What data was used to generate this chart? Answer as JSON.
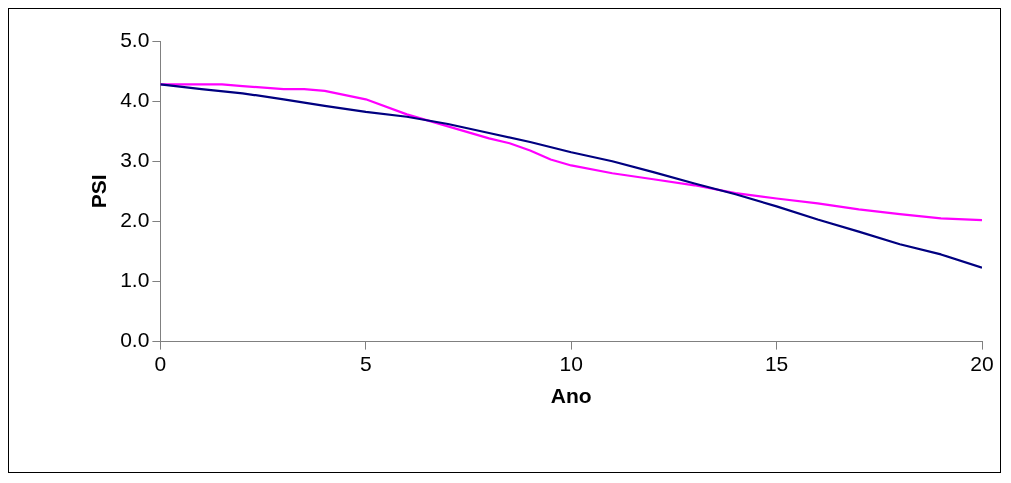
{
  "chart_data": {
    "type": "line",
    "xlabel": "Ano",
    "ylabel": "PSI",
    "xlim": [
      0,
      20
    ],
    "xticks": [
      0,
      5,
      10,
      15,
      20
    ],
    "ylim": [
      0,
      5
    ],
    "yticks": [
      {
        "value": 0,
        "label": "0.0"
      },
      {
        "value": 1,
        "label": "1.0"
      },
      {
        "value": 2,
        "label": "2.0"
      },
      {
        "value": 3,
        "label": "3.0"
      },
      {
        "value": 4,
        "label": "4.0"
      },
      {
        "value": 5,
        "label": "5.0"
      }
    ],
    "grid": false,
    "legend": false,
    "marker": "none",
    "line_style": "solid",
    "series": [
      {
        "color": "#000080",
        "x": [
          0,
          1,
          2,
          3,
          4,
          5,
          6,
          7,
          8,
          9,
          10,
          11,
          12,
          13,
          14,
          15,
          16,
          17,
          18,
          19,
          20
        ],
        "values": [
          4.28,
          4.2,
          4.13,
          4.03,
          3.92,
          3.82,
          3.74,
          3.62,
          3.47,
          3.32,
          3.15,
          3.0,
          2.82,
          2.63,
          2.45,
          2.25,
          2.03,
          1.83,
          1.62,
          1.45,
          1.23
        ]
      },
      {
        "color": "#ff00ff",
        "x": [
          0,
          1.5,
          2,
          3,
          3.5,
          4,
          5,
          6,
          7,
          8,
          8.5,
          9,
          9.5,
          10,
          11,
          12,
          13,
          14,
          15,
          16,
          17,
          18,
          19,
          20
        ],
        "values": [
          4.28,
          4.28,
          4.25,
          4.2,
          4.2,
          4.17,
          4.03,
          3.78,
          3.58,
          3.38,
          3.3,
          3.18,
          3.03,
          2.93,
          2.8,
          2.7,
          2.6,
          2.47,
          2.38,
          2.3,
          2.2,
          2.12,
          2.05,
          2.02
        ]
      }
    ]
  }
}
